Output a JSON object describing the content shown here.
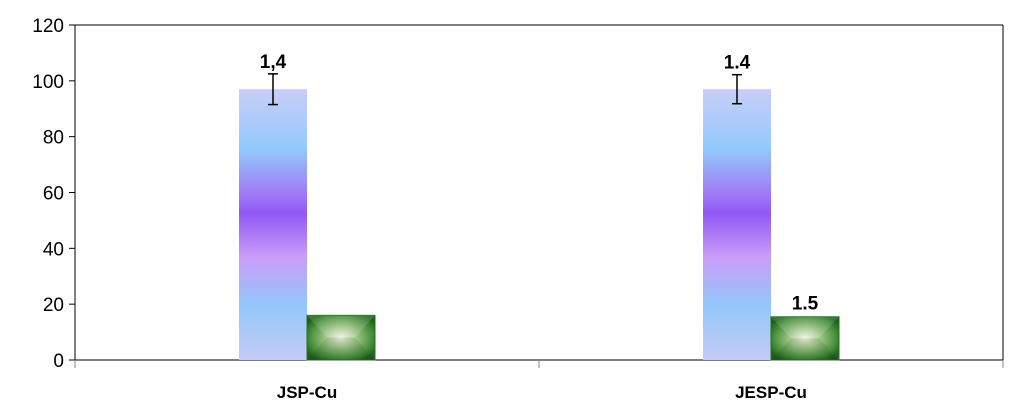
{
  "chart_data": {
    "type": "bar",
    "title": "",
    "xlabel": "",
    "ylabel": "",
    "ylim": [
      0,
      120
    ],
    "yticks": [
      0,
      20,
      40,
      60,
      80,
      100,
      120
    ],
    "grid": false,
    "categories": [
      "JSP-Cu",
      "JESP-Cu"
    ],
    "series": [
      {
        "values": [
          97,
          97
        ],
        "error": [
          5.5,
          5.2
        ],
        "data_labels": [
          "1,4",
          "1.4"
        ],
        "style": "gradient-lavender-violet"
      },
      {
        "values": [
          16,
          15.5
        ],
        "data_labels": [
          "",
          "1.5"
        ],
        "style": "green-beveled",
        "color": "#2e7d32"
      }
    ]
  }
}
